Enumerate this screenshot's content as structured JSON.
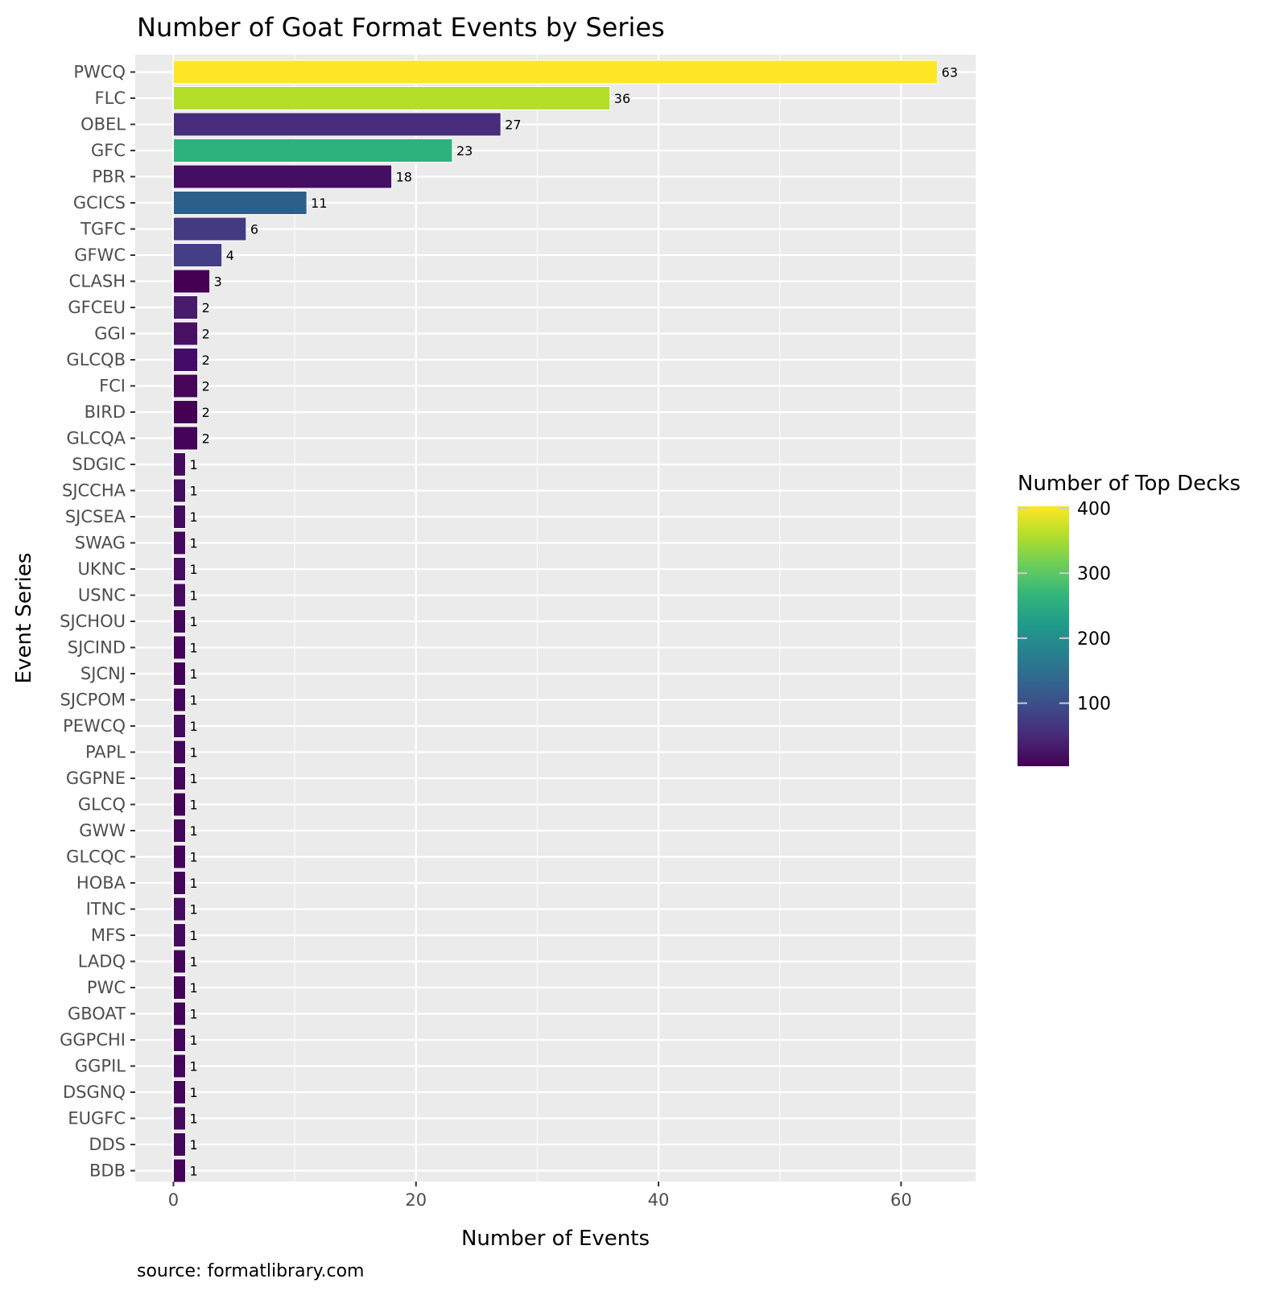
{
  "chart_data": {
    "type": "bar",
    "orientation": "horizontal",
    "title": "Number of Goat Format Events by Series",
    "xlabel": "Number of Events",
    "ylabel": "Event Series",
    "caption": "source: formatlibrary.com",
    "xlim": [
      -3.15,
      66.15
    ],
    "xticks": [
      0,
      20,
      40,
      60
    ],
    "grid": true,
    "categories": [
      "PWCQ",
      "FLC",
      "OBEL",
      "GFC",
      "PBR",
      "GCICS",
      "TGFC",
      "GFWC",
      "CLASH",
      "GFCEU",
      "GGI",
      "GLCQB",
      "FCI",
      "BIRD",
      "GLCQA",
      "SDGIC",
      "SJCCHA",
      "SJCSEA",
      "SWAG",
      "UKNC",
      "USNC",
      "SJCHOU",
      "SJCIND",
      "SJCNJ",
      "SJCPOM",
      "PEWCQ",
      "PAPL",
      "GGPNE",
      "GLCQ",
      "GWW",
      "GLCQC",
      "HOBA",
      "ITNC",
      "MFS",
      "LADQ",
      "PWC",
      "GBOAT",
      "GGPCHI",
      "GGPIL",
      "DSGNQ",
      "EUGFC",
      "DDS",
      "BDB"
    ],
    "values": [
      63,
      36,
      27,
      23,
      18,
      11,
      6,
      4,
      3,
      2,
      2,
      2,
      2,
      2,
      2,
      1,
      1,
      1,
      1,
      1,
      1,
      1,
      1,
      1,
      1,
      1,
      1,
      1,
      1,
      1,
      1,
      1,
      1,
      1,
      1,
      1,
      1,
      1,
      1,
      1,
      1,
      1,
      1
    ],
    "colors": [
      "#fde725",
      "#b5de2b",
      "#472d7b",
      "#2db27d",
      "#440f62",
      "#2c5f8a",
      "#443983",
      "#433e85",
      "#440154",
      "#481b6d",
      "#471063",
      "#440a68",
      "#450559",
      "#440154",
      "#450458",
      "#450a5c",
      "#440d5e",
      "#450c5d",
      "#450a5c",
      "#470d60",
      "#470b5e",
      "#450559",
      "#450458",
      "#440256",
      "#450559",
      "#460a5d",
      "#450559",
      "#450559",
      "#440256",
      "#450559",
      "#450457",
      "#450559",
      "#460b5e",
      "#460a5d",
      "#450458",
      "#440356",
      "#450457",
      "#450559",
      "#450559",
      "#450559",
      "#460a5d",
      "#450559",
      "#450457"
    ],
    "data_labels": [
      "63",
      "36",
      "27",
      "23",
      "18",
      "11",
      "6",
      "4",
      "3",
      "2",
      "2",
      "2",
      "2",
      "2",
      "2",
      "1",
      "1",
      "1",
      "1",
      "1",
      "1",
      "1",
      "1",
      "1",
      "1",
      "1",
      "1",
      "1",
      "1",
      "1",
      "1",
      "1",
      "1",
      "1",
      "1",
      "1",
      "1",
      "1",
      "1",
      "1",
      "1",
      "1",
      "1"
    ],
    "legend": {
      "title": "Number of Top Decks",
      "position": "right",
      "ticks": [
        100,
        200,
        300,
        400
      ],
      "range": [
        3,
        403
      ],
      "palette": [
        "#440154",
        "#482878",
        "#3e4989",
        "#31688e",
        "#26828e",
        "#1f9e89",
        "#35b779",
        "#6ece58",
        "#b5de2b",
        "#fde725"
      ]
    },
    "panel_background": "#ebebeb",
    "grid_color": "#ffffff"
  }
}
